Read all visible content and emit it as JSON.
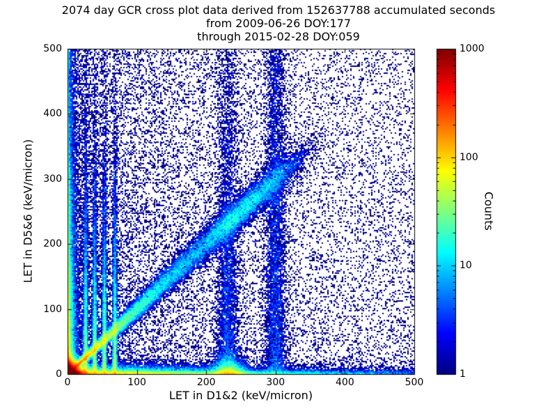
{
  "figure": {
    "background": "#ffffff",
    "text_color": "#000000"
  },
  "chart_data": {
    "type": "heatmap",
    "subtype": "2D histogram scatter-density cross plot with logarithmic color scale",
    "title_lines": [
      "2074 day GCR cross plot data derived from 152637788 accumulated seconds",
      "from 2009-06-26 DOY:177",
      "through 2015-02-28 DOY:059"
    ],
    "xlabel": "LET in D1&2 (keV/micron)",
    "ylabel": "LET in D5&6 (keV/micron)",
    "xlim": [
      0,
      500
    ],
    "ylim": [
      0,
      500
    ],
    "x_ticks": [
      0,
      100,
      200,
      300,
      400,
      500
    ],
    "y_ticks": [
      0,
      100,
      200,
      300,
      400,
      500
    ],
    "grid": false,
    "colormap": "jet",
    "color_low": "#000080",
    "color_high": "#800000",
    "colorbar": {
      "label": "Counts",
      "scale": "log",
      "range": [
        1,
        1000
      ],
      "ticks": [
        1,
        10,
        100,
        1000
      ]
    },
    "seed": 42,
    "density_components": [
      {
        "name": "origin-hotspot",
        "type": "exp2d",
        "n": 120000,
        "mean_x": 5,
        "mean_y": 5
      },
      {
        "name": "bottom-band",
        "type": "exp2d",
        "n": 26000,
        "mean_x": 150,
        "mean_y": 4
      },
      {
        "name": "left-axis-column",
        "type": "exp2d",
        "n": 20000,
        "mean_x": 3.5,
        "mean_y": 150
      },
      {
        "name": "bottom-band-knot",
        "type": "hblob",
        "n": 6000,
        "x_mean": 232,
        "x_sigma": 12,
        "mean_y": 7
      },
      {
        "name": "main-diagonal",
        "type": "diag",
        "n": 30000,
        "mean_t": 120,
        "t_max": 335,
        "slope": 1,
        "sb": 2,
        "sg": 0.045
      },
      {
        "name": "diagonal-knot",
        "type": "diag_blob",
        "n": 7000,
        "t_mean": 255,
        "t_sigma": 38,
        "spread": 9
      },
      {
        "name": "bright-low-diagonal",
        "type": "diag",
        "n": 4000,
        "mean_t": 26,
        "t_max": 82,
        "slope": 0.93,
        "sb": 0.9,
        "sg": 0.004
      },
      {
        "name": "vertical-streaks",
        "type": "vband",
        "centers": [
          26,
          39,
          53,
          68
        ],
        "n_each": 5200,
        "sigma": 1.6,
        "mean_y": 95
      },
      {
        "name": "plume-230",
        "type": "vband",
        "centers": [
          231
        ],
        "n_each": 5500,
        "sigma": 8,
        "mean_y": 260
      },
      {
        "name": "plume-300",
        "type": "vband",
        "centers": [
          300
        ],
        "n_each": 8000,
        "sigma": 8,
        "mean_y": 420
      },
      {
        "name": "left-weighted-scatter",
        "type": "power2d",
        "n": 20000,
        "px": 2.4,
        "py": 1.2
      },
      {
        "name": "sparse-scatter",
        "type": "uniform",
        "n": 3000
      }
    ]
  }
}
